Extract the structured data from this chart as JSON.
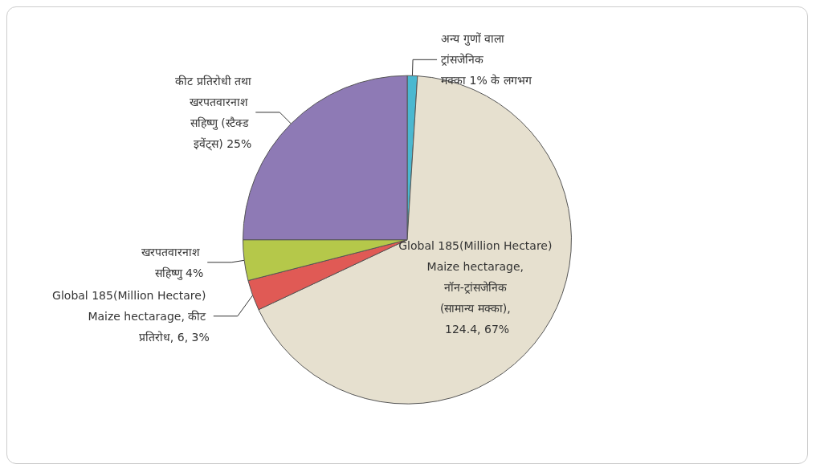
{
  "chart_data": {
    "type": "pie",
    "categories": [
      "अन्य गुणों वाला ट्रांसजेनिक मक्का 1% के लगभग",
      "Global 185(Million Hectare) Maize hectarage, नॉन-ट्रांसजेनिक (सामान्य मक्का), 124.4, 67%",
      "Global 185(Million Hectare) Maize hectarage, कीट प्रतिरोध, 6, 3%",
      "खरपतवारनाश सहिष्णु 4%",
      "कीट प्रतिरोधी तथा खरपतवारनाश सहिष्णु (स्टैक्ड इवेंट्स) 25%"
    ],
    "values": [
      1,
      67,
      3,
      4,
      25
    ],
    "colors": [
      "#4bb8d0",
      "#e6e0cf",
      "#e05a55",
      "#b5c84a",
      "#8e7ab5"
    ]
  }
}
